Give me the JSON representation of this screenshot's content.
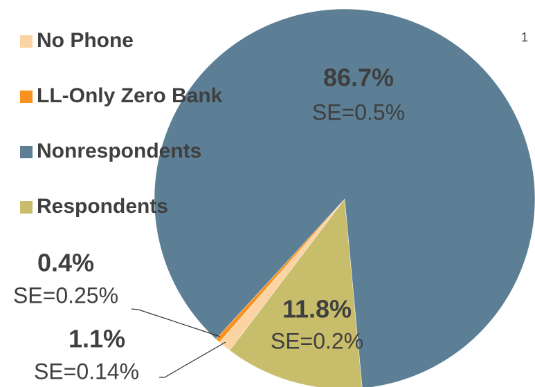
{
  "chart_data": {
    "type": "pie",
    "categories": [
      "Respondents",
      "No Phone",
      "LL-Only Zero Bank",
      "Nonrespondents"
    ],
    "values": [
      11.8,
      1.1,
      0.4,
      86.7
    ],
    "value_labels": [
      "11.8%",
      "1.1%",
      "0.4%",
      "86.7%"
    ],
    "se_labels": [
      "SE=0.2%",
      "SE=0.14%",
      "SE=0.25%",
      "SE=0.5%"
    ],
    "colors": [
      "#c8bd6b",
      "#fcd4a4",
      "#f7921e",
      "#5c7f95"
    ],
    "legend_order": [
      1,
      2,
      3,
      0
    ],
    "corner_note": "1"
  }
}
